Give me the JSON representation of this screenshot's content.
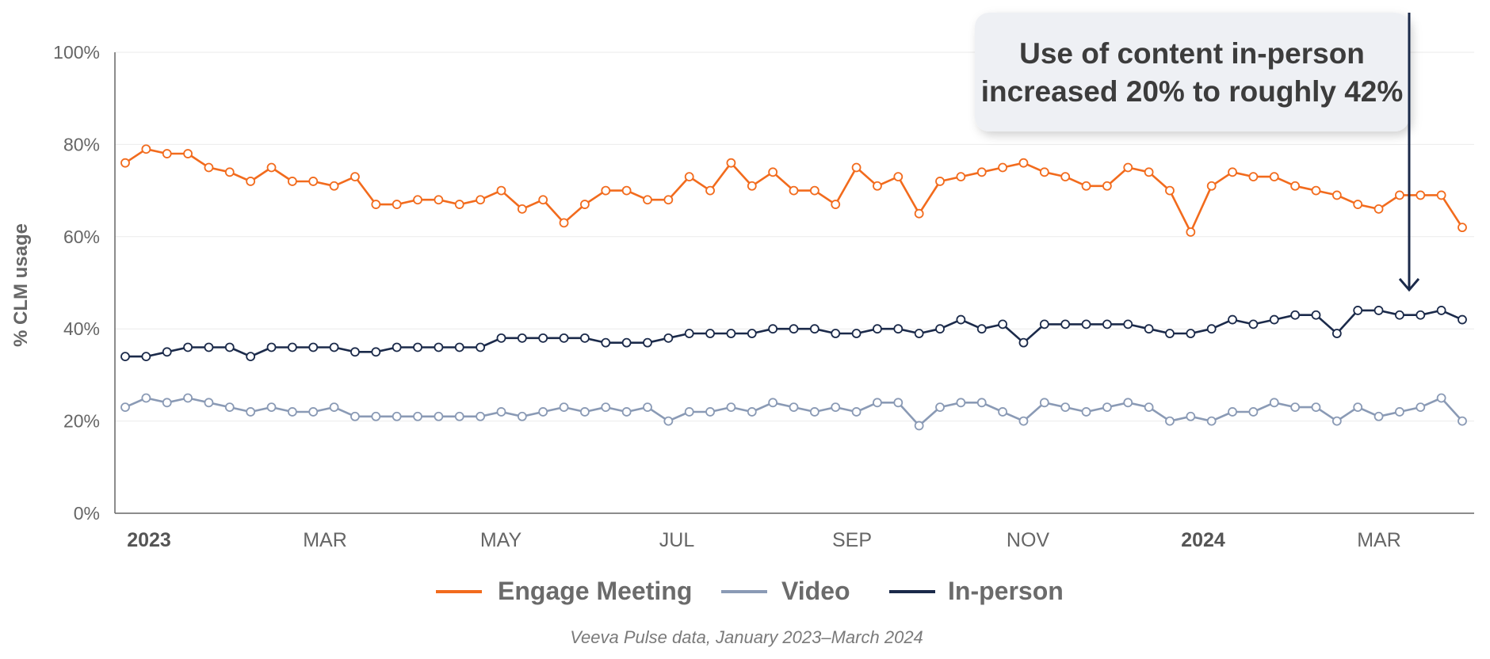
{
  "chart_data": {
    "type": "line",
    "ylabel": "% CLM usage",
    "xlabel": "",
    "ylim": [
      0,
      100
    ],
    "y_ticks": [
      "0%",
      "20%",
      "40%",
      "60%",
      "80%",
      "100%"
    ],
    "x_ticks": [
      {
        "label": "2023",
        "bold": true
      },
      {
        "label": "MAR",
        "bold": false
      },
      {
        "label": "MAY",
        "bold": false
      },
      {
        "label": "JUL",
        "bold": false
      },
      {
        "label": "SEP",
        "bold": false
      },
      {
        "label": "NOV",
        "bold": false
      },
      {
        "label": "2024",
        "bold": true
      },
      {
        "label": "MAR",
        "bold": false
      }
    ],
    "grid": true,
    "legend_position": "bottom",
    "series": [
      {
        "name": "Engage Meeting",
        "color": "#F26B1D",
        "values": [
          76,
          79,
          78,
          78,
          75,
          74,
          72,
          75,
          72,
          72,
          71,
          73,
          67,
          67,
          68,
          68,
          67,
          68,
          70,
          66,
          68,
          63,
          67,
          70,
          70,
          68,
          68,
          73,
          70,
          76,
          71,
          74,
          70,
          70,
          67,
          75,
          71,
          73,
          65,
          72,
          73,
          74,
          75,
          76,
          74,
          73,
          71,
          71,
          75,
          74,
          70,
          61,
          71,
          74,
          73,
          73,
          71,
          70,
          69,
          67,
          66,
          69,
          69,
          69,
          62
        ]
      },
      {
        "name": "Video",
        "color": "#8A9AB5",
        "values": [
          23,
          25,
          24,
          25,
          24,
          23,
          22,
          23,
          22,
          22,
          23,
          21,
          21,
          21,
          21,
          21,
          21,
          21,
          22,
          21,
          22,
          23,
          22,
          23,
          22,
          23,
          20,
          22,
          22,
          23,
          22,
          24,
          23,
          22,
          23,
          22,
          24,
          24,
          19,
          23,
          24,
          24,
          22,
          20,
          24,
          23,
          22,
          23,
          24,
          23,
          20,
          21,
          20,
          22,
          22,
          24,
          23,
          23,
          20,
          23,
          21,
          22,
          23,
          25,
          20
        ]
      },
      {
        "name": "In-person",
        "color": "#1B2A4A",
        "values": [
          34,
          34,
          35,
          36,
          36,
          36,
          34,
          36,
          36,
          36,
          36,
          35,
          35,
          36,
          36,
          36,
          36,
          36,
          38,
          38,
          38,
          38,
          38,
          37,
          37,
          37,
          38,
          39,
          39,
          39,
          39,
          40,
          40,
          40,
          39,
          39,
          40,
          40,
          39,
          40,
          42,
          40,
          41,
          37,
          41,
          41,
          41,
          41,
          41,
          40,
          39,
          39,
          40,
          42,
          41,
          42,
          43,
          43,
          39,
          44,
          44,
          43,
          43,
          44,
          42
        ]
      }
    ],
    "annotation": {
      "text_line1": "Use of content in-person",
      "text_line2": "increased 20% to roughly 42%"
    }
  },
  "source_note": "Veeva Pulse data, January 2023–March 2024"
}
